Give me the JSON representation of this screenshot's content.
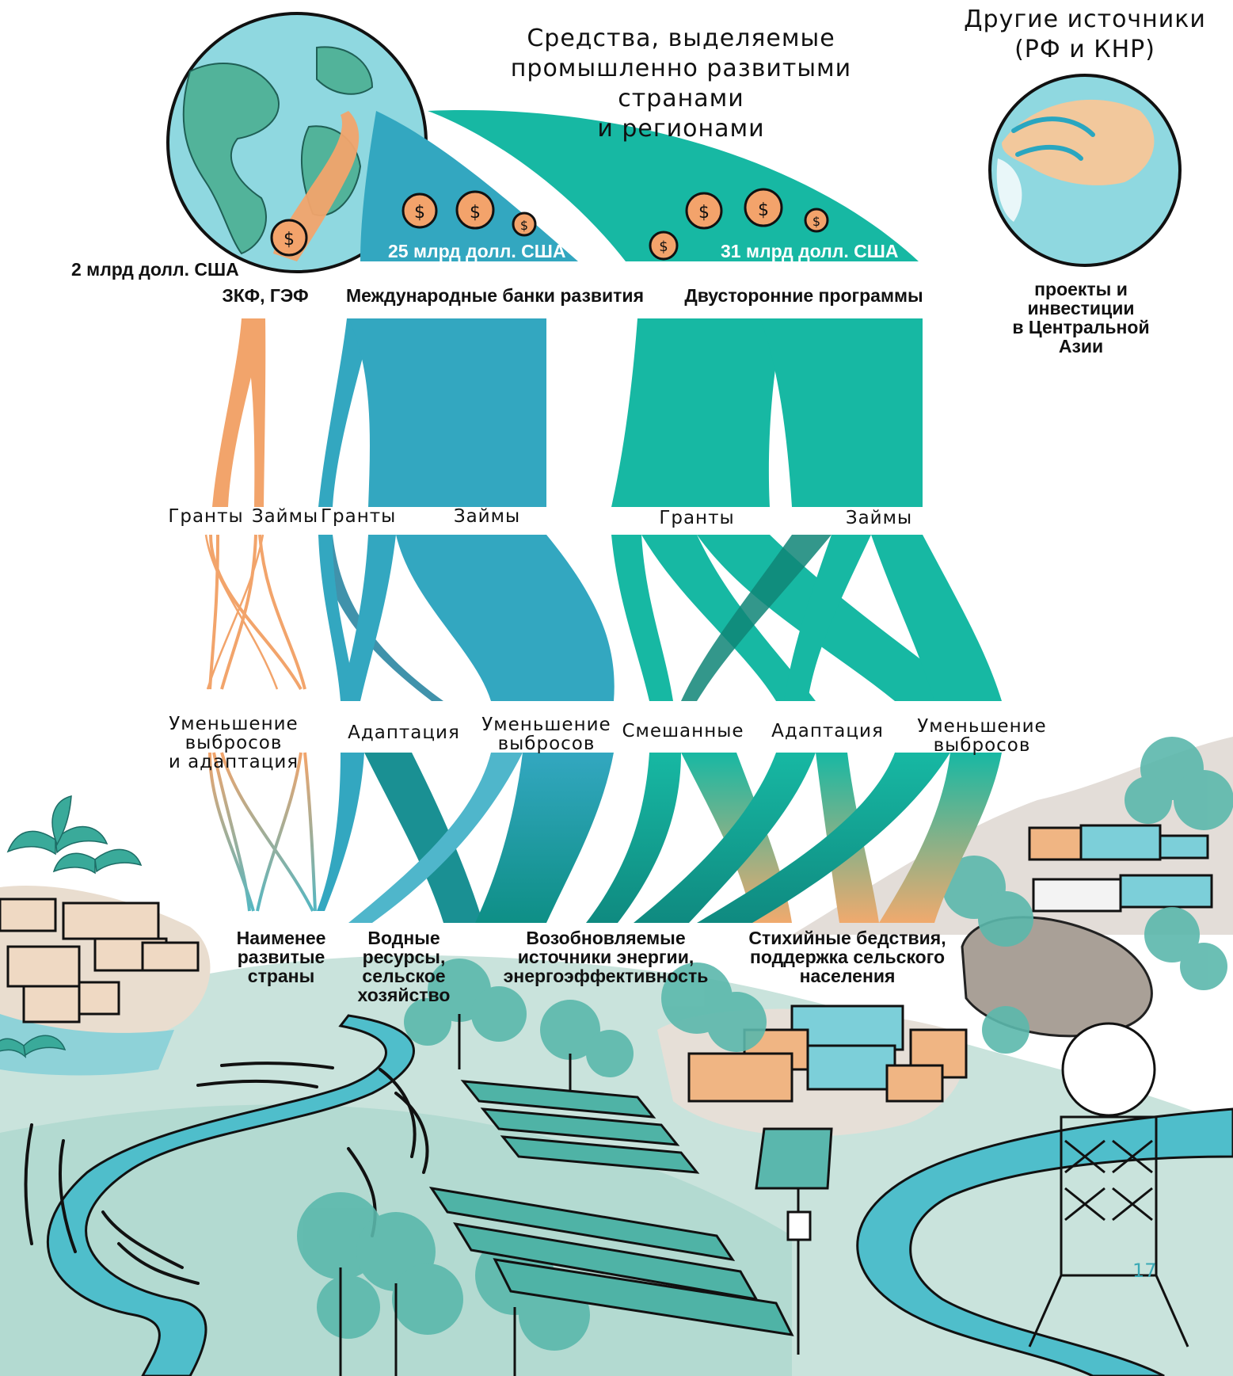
{
  "title": "Средства, выделяемые\nпромышленно развитыми странами\nи регионами",
  "other_sources": {
    "title": "Другие источники\n(РФ и КНР)",
    "caption": "проекты и\nинвестиции\nв Центральной\nАзии"
  },
  "sources": [
    {
      "amount": "2 млрд долл. США",
      "name": "ЗКФ, ГЭФ",
      "color": "#f0a96e"
    },
    {
      "amount": "25 млрд долл. США",
      "name": "Международные банки развития",
      "color": "#33a7c0"
    },
    {
      "amount": "31 млрд долл. США",
      "name": "Двусторонние программы",
      "color": "#17b8a3"
    }
  ],
  "instruments": [
    "Гранты",
    "Займы",
    "Гранты",
    "Займы",
    "Гранты",
    "Займы"
  ],
  "purposes": [
    "Уменьшение выбросов\nи адаптация",
    "Адаптация",
    "Уменьшение\nвыбросов",
    "Смешанные",
    "Адаптация",
    "Уменьшение\nвыбросов"
  ],
  "recipients": [
    "Наименее\nразвитые\nстраны",
    "Водные\nресурсы,\nсельское\nхозяйство",
    "Возобновляемые\nисточники энергии,\nэнергоэффективность",
    "Стихийные бедствия,\nподдержка сельского\nнаселения"
  ],
  "page_number": "17",
  "icons": [
    "globe-americas-icon",
    "globe-asia-icon",
    "dollar-coin-icon",
    "palm-tree-icon",
    "house-icon",
    "solar-panel-icon",
    "weather-station-icon",
    "river-icon",
    "tree-icon"
  ]
}
